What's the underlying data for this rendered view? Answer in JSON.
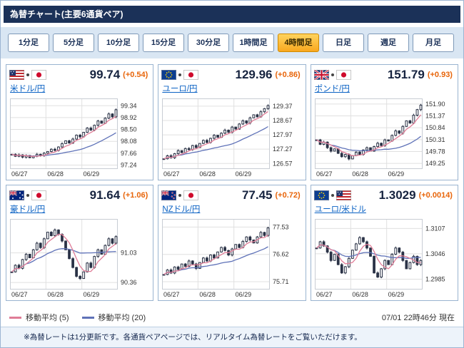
{
  "title": "為替チャート(主要6通貨ペア)",
  "tabs": {
    "selected_index": 6,
    "items": [
      {
        "label": "1分足"
      },
      {
        "label": "5分足"
      },
      {
        "label": "10分足"
      },
      {
        "label": "15分足"
      },
      {
        "label": "30分足"
      },
      {
        "label": "1時間足"
      },
      {
        "label": "4時間足"
      },
      {
        "label": "日足"
      },
      {
        "label": "週足"
      },
      {
        "label": "月足"
      }
    ]
  },
  "colors": {
    "header_bg": "#1b3158",
    "tab_selected": "#f9a81f",
    "price_change": "#e8650a",
    "link": "#0b62c4",
    "candle": "#2a3246"
  },
  "panels": [
    {
      "id": "usdjpy",
      "flags": [
        "us",
        "jp"
      ],
      "pair": "米ドル/円",
      "price": "99.74",
      "change": "(+0.54)",
      "chart": {
        "type": "candlestick",
        "x_ticks": [
          "06/27",
          "06/28",
          "06/29"
        ],
        "y_ticks": [
          {
            "label": "99.34",
            "value": 99.34
          },
          {
            "label": "98.92",
            "value": 98.92
          },
          {
            "label": "98.50",
            "value": 98.5
          },
          {
            "label": "98.08",
            "value": 98.08
          },
          {
            "label": "97.66",
            "value": 97.66
          },
          {
            "label": "97.24",
            "value": 97.24
          }
        ],
        "ylim": [
          97.1,
          99.6
        ],
        "closes": [
          97.62,
          97.55,
          97.6,
          97.52,
          97.58,
          97.5,
          97.55,
          97.62,
          97.58,
          97.66,
          97.72,
          97.8,
          97.76,
          97.88,
          98.0,
          98.1,
          98.02,
          98.16,
          98.3,
          98.24,
          98.4,
          98.55,
          98.48,
          98.65,
          98.8,
          98.72,
          98.9,
          99.05,
          98.95,
          99.2
        ],
        "ma": [
          5,
          20
        ]
      }
    },
    {
      "id": "eurjpy",
      "flags": [
        "eu",
        "jp"
      ],
      "pair": "ユーロ/円",
      "price": "129.96",
      "change": "(+0.86)",
      "chart": {
        "type": "candlestick",
        "x_ticks": [
          "06/27",
          "06/28",
          "06/29"
        ],
        "y_ticks": [
          {
            "label": "129.37",
            "value": 129.37
          },
          {
            "label": "128.67",
            "value": 128.67
          },
          {
            "label": "127.97",
            "value": 127.97
          },
          {
            "label": "127.27",
            "value": 127.27
          },
          {
            "label": "126.57",
            "value": 126.57
          }
        ],
        "ylim": [
          126.3,
          129.75
        ],
        "closes": [
          126.8,
          126.95,
          126.85,
          127.05,
          127.2,
          127.1,
          127.3,
          127.25,
          127.45,
          127.35,
          127.55,
          127.7,
          127.6,
          127.8,
          127.95,
          127.85,
          128.05,
          128.2,
          128.1,
          128.35,
          128.25,
          128.5,
          128.65,
          128.55,
          128.8,
          128.95,
          128.85,
          129.1,
          129.25,
          129.4
        ],
        "ma": [
          5,
          20
        ]
      }
    },
    {
      "id": "gbpjpy",
      "flags": [
        "uk",
        "jp"
      ],
      "pair": "ポンド/円",
      "price": "151.79",
      "change": "(+0.93)",
      "chart": {
        "type": "candlestick",
        "x_ticks": [
          "06/27",
          "06/28",
          "06/29"
        ],
        "y_ticks": [
          {
            "label": "151.90",
            "value": 151.9
          },
          {
            "label": "151.37",
            "value": 151.37
          },
          {
            "label": "150.84",
            "value": 150.84
          },
          {
            "label": "150.31",
            "value": 150.31
          },
          {
            "label": "149.78",
            "value": 149.78
          },
          {
            "label": "149.25",
            "value": 149.25
          }
        ],
        "ylim": [
          149.0,
          152.15
        ],
        "closes": [
          150.3,
          150.1,
          150.2,
          149.95,
          149.8,
          149.9,
          149.7,
          149.55,
          149.65,
          149.45,
          149.6,
          149.75,
          149.65,
          149.85,
          149.95,
          149.8,
          150.0,
          150.15,
          150.05,
          150.3,
          150.25,
          150.5,
          150.7,
          150.6,
          150.9,
          151.15,
          151.05,
          151.4,
          151.65,
          151.85
        ],
        "ma": [
          5,
          20
        ]
      }
    },
    {
      "id": "audjpy",
      "flags": [
        "au",
        "jp"
      ],
      "pair": "豪ドル/円",
      "price": "91.64",
      "change": "(+1.06)",
      "chart": {
        "type": "candlestick",
        "x_ticks": [
          "06/27",
          "06/28",
          "06/29"
        ],
        "y_ticks": [
          {
            "label": "91.03",
            "value": 91.03
          },
          {
            "label": "90.36",
            "value": 90.36
          }
        ],
        "ylim": [
          90.2,
          91.8
        ],
        "closes": [
          90.6,
          90.75,
          90.68,
          90.88,
          91.0,
          90.92,
          91.1,
          91.25,
          91.15,
          91.35,
          91.5,
          91.42,
          91.55,
          91.45,
          91.3,
          91.1,
          90.9,
          90.7,
          90.5,
          90.45,
          90.6,
          90.8,
          90.7,
          90.95,
          91.1,
          91.0,
          91.2,
          91.35,
          91.25,
          91.4
        ],
        "ma": [
          5,
          20
        ]
      }
    },
    {
      "id": "nzdjpy",
      "flags": [
        "nz",
        "jp"
      ],
      "pair": "NZドル/円",
      "price": "77.45",
      "change": "(+0.72)",
      "chart": {
        "type": "candlestick",
        "x_ticks": [
          "06/27",
          "06/28",
          "06/29"
        ],
        "y_ticks": [
          {
            "label": "77.53",
            "value": 77.53
          },
          {
            "label": "76.62",
            "value": 76.62
          },
          {
            "label": "75.71",
            "value": 75.71
          }
        ],
        "ylim": [
          75.45,
          77.8
        ],
        "closes": [
          75.95,
          76.1,
          76.0,
          76.2,
          76.12,
          76.3,
          76.22,
          76.4,
          76.3,
          76.15,
          76.35,
          76.5,
          76.4,
          76.6,
          76.5,
          76.7,
          76.85,
          76.75,
          76.6,
          76.8,
          76.95,
          76.85,
          77.05,
          77.2,
          77.1,
          77.0,
          77.2,
          77.35,
          77.25,
          77.5
        ],
        "ma": [
          5,
          20
        ]
      }
    },
    {
      "id": "eurusd",
      "flags": [
        "eu",
        "us"
      ],
      "pair": "ユーロ/米ドル",
      "price": "1.3029",
      "change": "(+0.0014)",
      "chart": {
        "type": "candlestick",
        "x_ticks": [
          "06/27",
          "06/28",
          "06/29"
        ],
        "y_ticks": [
          {
            "label": "1.3107",
            "value": 1.3107
          },
          {
            "label": "1.3046",
            "value": 1.3046
          },
          {
            "label": "1.2985",
            "value": 1.2985
          }
        ],
        "ylim": [
          1.296,
          1.313
        ],
        "closes": [
          1.306,
          1.3075,
          1.3065,
          1.305,
          1.303,
          1.3045,
          1.302,
          1.3,
          1.3015,
          1.3035,
          1.3055,
          1.307,
          1.3085,
          1.3075,
          1.306,
          1.304,
          1.3,
          1.299,
          1.301,
          1.303,
          1.302,
          1.3045,
          1.306,
          1.305,
          1.303,
          1.301,
          1.3025,
          1.304,
          1.302,
          1.303
        ],
        "ma": [
          5,
          20
        ]
      }
    }
  ],
  "legend": [
    {
      "label": "移動平均 (5)",
      "color": "#e07d97"
    },
    {
      "label": "移動平均 (20)",
      "color": "#5f72b8"
    }
  ],
  "timestamp": "07/01 22時46分 現在",
  "note": "※為替レートは1分更新です。各通貨ペアページでは、リアルタイム為替レートをご覧いただけます。"
}
